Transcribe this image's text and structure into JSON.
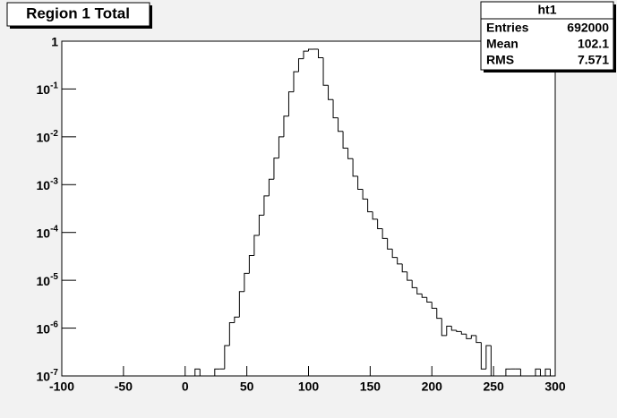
{
  "chart_data": {
    "type": "histogram",
    "title": "Region 1 Total",
    "log_y": true,
    "color": "#000000",
    "bins": [
      -100,
      -96,
      -92,
      -88,
      -84,
      -80,
      -76,
      -72,
      -68,
      -64,
      -60,
      -56,
      -52,
      -48,
      -44,
      -40,
      -36,
      -32,
      -28,
      -24,
      -20,
      -16,
      -12,
      -8,
      -4,
      0,
      4,
      8,
      12,
      16,
      20,
      24,
      28,
      32,
      36,
      40,
      44,
      48,
      52,
      56,
      60,
      64,
      68,
      72,
      76,
      80,
      84,
      88,
      92,
      96,
      100,
      104,
      108,
      112,
      116,
      120,
      124,
      128,
      132,
      136,
      140,
      144,
      148,
      152,
      156,
      160,
      164,
      168,
      172,
      176,
      180,
      184,
      188,
      192,
      196,
      200,
      204,
      208,
      212,
      216,
      220,
      224,
      228,
      232,
      236,
      240,
      244,
      248,
      252,
      256,
      260,
      264,
      268,
      272,
      276,
      280,
      284,
      288,
      292,
      296,
      300
    ],
    "values": [
      0,
      0,
      0,
      0,
      0,
      0,
      0,
      0,
      0,
      0,
      0,
      0,
      0,
      0,
      0,
      0,
      0,
      0,
      0,
      0,
      0,
      0,
      0,
      0,
      0,
      0,
      0,
      1.4e-07,
      0,
      0,
      0,
      1.4e-07,
      1.4e-07,
      4.3e-07,
      1.3e-06,
      1.7e-06,
      5.8e-06,
      1.4e-05,
      3.3e-05,
      8.7e-05,
      0.00023,
      0.00058,
      0.0013,
      0.0036,
      0.01,
      0.027,
      0.087,
      0.23,
      0.43,
      0.62,
      0.68,
      0.68,
      0.45,
      0.12,
      0.06,
      0.025,
      0.013,
      0.0058,
      0.0035,
      0.0015,
      0.0008,
      0.0005,
      0.00027,
      0.00019,
      0.00012,
      7.5e-05,
      4.5e-05,
      3e-05,
      2.2e-05,
      1.5e-05,
      1e-05,
      7e-06,
      5.2e-06,
      4.4e-06,
      3.5e-06,
      2.6e-06,
      1.6e-06,
      7e-07,
      1.1e-06,
      9e-07,
      8.5e-07,
      7.5e-07,
      6e-07,
      7e-07,
      5e-07,
      1.4e-07,
      4.3e-07,
      0,
      0,
      0,
      1.4e-07,
      1.4e-07,
      1.4e-07,
      0,
      0,
      0,
      1.4e-07,
      0,
      1.4e-07,
      0
    ],
    "xlim": [
      -100,
      300
    ],
    "xticks": [
      -100,
      -50,
      0,
      50,
      100,
      150,
      200,
      250,
      300
    ],
    "ylim": [
      1e-07,
      1
    ],
    "yticks": [
      {
        "value": 1e-07,
        "label": "10^-7"
      },
      {
        "value": 1e-06,
        "label": "10^-6"
      },
      {
        "value": 1e-05,
        "label": "10^-5"
      },
      {
        "value": 0.0001,
        "label": "10^-4"
      },
      {
        "value": 0.001,
        "label": "10^-3"
      },
      {
        "value": 0.01,
        "label": "10^-2"
      },
      {
        "value": 0.1,
        "label": "10^-1"
      },
      1
    ],
    "stats": {
      "title": "ht1",
      "entries_label": "Entries",
      "entries": 692000,
      "mean_label": "Mean",
      "mean": 102.1,
      "rms_label": "RMS",
      "rms": 7.571
    }
  }
}
